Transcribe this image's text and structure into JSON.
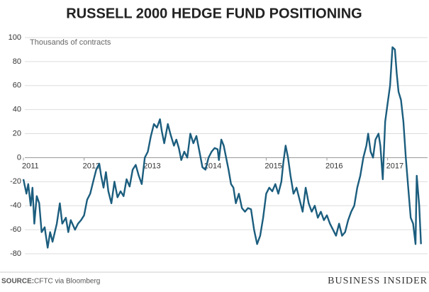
{
  "chart_data": {
    "type": "line",
    "title": "RUSSELL 2000 HEDGE FUND POSITIONING",
    "annotation": "Thousands of contracts",
    "source_label": "SOURCE:",
    "source": "CFTC via Bloomberg",
    "brand": "BUSINESS INSIDER",
    "color": "#1b5d7e",
    "grid": true,
    "xlim": [
      2011,
      2017.6
    ],
    "xticks": [
      2011,
      2012,
      2013,
      2014,
      2015,
      2016,
      2017
    ],
    "ylim": [
      -80,
      100
    ],
    "yticks": [
      -80,
      -60,
      -40,
      -20,
      0,
      20,
      40,
      60,
      80,
      100
    ],
    "x": [
      2011.0,
      2011.05,
      2011.08,
      2011.12,
      2011.15,
      2011.18,
      2011.22,
      2011.26,
      2011.3,
      2011.35,
      2011.4,
      2011.44,
      2011.48,
      2011.55,
      2011.6,
      2011.64,
      2011.7,
      2011.74,
      2011.78,
      2011.85,
      2011.9,
      2011.95,
      2012.0,
      2012.05,
      2012.1,
      2012.15,
      2012.2,
      2012.25,
      2012.28,
      2012.32,
      2012.36,
      2012.4,
      2012.45,
      2012.5,
      2012.55,
      2012.6,
      2012.65,
      2012.7,
      2012.75,
      2012.8,
      2012.85,
      2012.9,
      2012.95,
      2013.0,
      2013.05,
      2013.1,
      2013.15,
      2013.2,
      2013.25,
      2013.28,
      2013.32,
      2013.38,
      2013.42,
      2013.48,
      2013.52,
      2013.56,
      2013.6,
      2013.65,
      2013.7,
      2013.75,
      2013.8,
      2013.85,
      2013.9,
      2013.95,
      2014.0,
      2014.05,
      2014.1,
      2014.15,
      2014.2,
      2014.22,
      2014.26,
      2014.3,
      2014.34,
      2014.38,
      2014.42,
      2014.46,
      2014.5,
      2014.55,
      2014.6,
      2014.65,
      2014.7,
      2014.75,
      2014.8,
      2014.85,
      2014.9,
      2014.95,
      2015.0,
      2015.05,
      2015.1,
      2015.15,
      2015.2,
      2015.25,
      2015.28,
      2015.32,
      2015.36,
      2015.4,
      2015.45,
      2015.5,
      2015.55,
      2015.6,
      2015.65,
      2015.7,
      2015.75,
      2015.8,
      2015.85,
      2015.9,
      2015.95,
      2016.0,
      2016.05,
      2016.1,
      2016.15,
      2016.2,
      2016.25,
      2016.3,
      2016.35,
      2016.4,
      2016.45,
      2016.5,
      2016.55,
      2016.6,
      2016.65,
      2016.68,
      2016.72,
      2016.76,
      2016.8,
      2016.85,
      2016.88,
      2016.92,
      2016.96,
      2017.0,
      2017.04,
      2017.08,
      2017.12,
      2017.15,
      2017.18,
      2017.22,
      2017.26,
      2017.3,
      2017.34,
      2017.38,
      2017.42,
      2017.46,
      2017.48,
      2017.52,
      2017.55
    ],
    "values": [
      -18,
      -30,
      -22,
      -40,
      -25,
      -55,
      -32,
      -38,
      -62,
      -58,
      -75,
      -62,
      -70,
      -55,
      -38,
      -55,
      -50,
      -62,
      -52,
      -60,
      -55,
      -52,
      -48,
      -35,
      -30,
      -20,
      -10,
      -5,
      -15,
      -25,
      -12,
      -28,
      -38,
      -20,
      -33,
      -28,
      -32,
      -18,
      -24,
      -10,
      -6,
      -15,
      -22,
      0,
      5,
      18,
      28,
      25,
      32,
      22,
      12,
      28,
      20,
      10,
      15,
      8,
      -2,
      5,
      0,
      20,
      12,
      18,
      5,
      -8,
      -10,
      0,
      5,
      8,
      7,
      -2,
      15,
      10,
      0,
      -10,
      -22,
      -25,
      -38,
      -30,
      -42,
      -45,
      -42,
      -43,
      -60,
      -72,
      -65,
      -50,
      -30,
      -25,
      -28,
      -22,
      -30,
      -20,
      -5,
      10,
      0,
      -15,
      -30,
      -25,
      -35,
      -45,
      -25,
      -38,
      -45,
      -40,
      -50,
      -45,
      -52,
      -48,
      -55,
      -60,
      -65,
      -55,
      -65,
      -62,
      -52,
      -45,
      -40,
      -25,
      -15,
      0,
      10,
      20,
      5,
      0,
      15,
      20,
      10,
      -18,
      30,
      45,
      60,
      92,
      90,
      70,
      55,
      48,
      30,
      0,
      -25,
      -50,
      -55,
      -72,
      -15,
      -40,
      -72
    ]
  }
}
